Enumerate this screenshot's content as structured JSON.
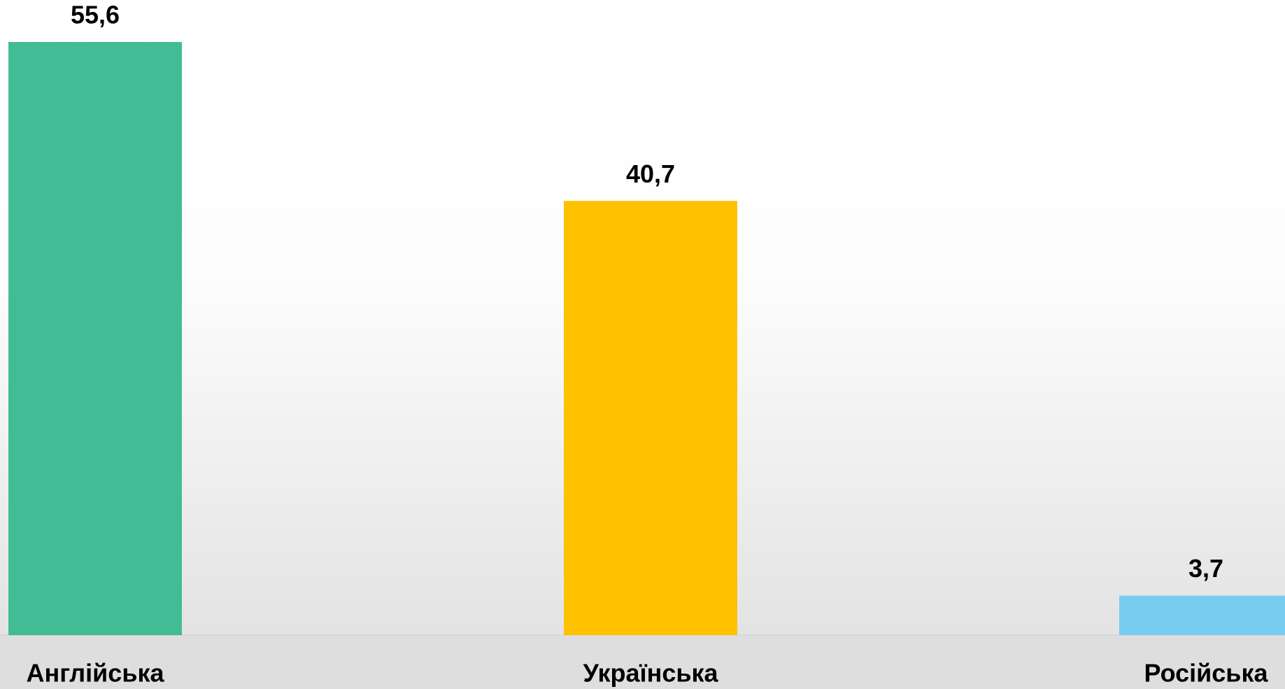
{
  "chart_data": {
    "type": "bar",
    "categories": [
      "Англійська",
      "Українська",
      "Російська"
    ],
    "values": [
      55.6,
      40.7,
      3.7
    ],
    "value_labels": [
      "55,6",
      "40,7",
      "3,7"
    ],
    "colors": [
      "#43bc96",
      "#ffc000",
      "#77cdf0"
    ]
  }
}
